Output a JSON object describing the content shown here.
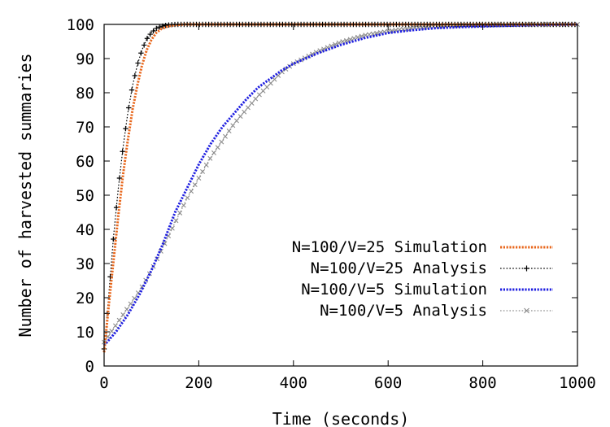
{
  "chart_data": {
    "type": "line",
    "xlabel": "Time (seconds)",
    "ylabel": "Number of harvested summaries",
    "xlim": [
      0,
      1000
    ],
    "ylim": [
      0,
      100
    ],
    "x_ticks": [
      0,
      200,
      400,
      600,
      800,
      1000
    ],
    "y_ticks": [
      0,
      10,
      20,
      30,
      40,
      50,
      60,
      70,
      80,
      90,
      100
    ],
    "grid": false,
    "legend_position": "bottom-right",
    "series": [
      {
        "name": "N=100/V=25 Simulation",
        "color": "#e8671c",
        "style": "dotted",
        "x": [
          0,
          10,
          20,
          30,
          40,
          50,
          60,
          70,
          80,
          90,
          100,
          110,
          120,
          130,
          140,
          150,
          170,
          200,
          300,
          400,
          500,
          600,
          700,
          800,
          900,
          1000
        ],
        "y": [
          4,
          18,
          31,
          44,
          56,
          66,
          75,
          82,
          88,
          92.5,
          95.5,
          97.5,
          98.6,
          99.2,
          99.6,
          99.8,
          100,
          100,
          100,
          100,
          100,
          100,
          100,
          100,
          100,
          100
        ]
      },
      {
        "name": "N=100/V=25 Analysis",
        "color": "#000000",
        "style": "dotted-plus",
        "x": [
          0,
          10,
          20,
          30,
          40,
          50,
          60,
          70,
          80,
          90,
          100,
          110,
          120,
          130,
          140,
          150,
          170,
          200,
          300,
          400,
          500,
          600,
          700,
          800,
          900,
          1000
        ],
        "y": [
          5,
          21,
          38,
          52,
          64,
          74,
          82,
          88,
          92.5,
          95.7,
          97.6,
          98.8,
          99.4,
          99.7,
          99.9,
          100,
          100,
          100,
          100,
          100,
          100,
          100,
          100,
          100,
          100,
          100
        ]
      },
      {
        "name": "N=100/V=5 Simulation",
        "color": "#1f1fe0",
        "style": "dotted",
        "x": [
          0,
          25,
          50,
          75,
          100,
          125,
          150,
          175,
          200,
          225,
          250,
          275,
          300,
          325,
          350,
          375,
          400,
          450,
          500,
          550,
          600,
          650,
          700,
          750,
          800,
          850,
          900,
          950,
          1000
        ],
        "y": [
          6,
          10,
          15,
          21,
          28,
          36,
          45,
          52,
          59,
          65,
          70,
          74,
          78,
          81.5,
          84,
          86.5,
          88.5,
          91.5,
          94,
          96,
          97.5,
          98.3,
          98.9,
          99.2,
          99.4,
          99.6,
          99.8,
          99.9,
          100
        ]
      },
      {
        "name": "N=100/V=5 Analysis",
        "color": "#8c8c8c",
        "style": "dotted-x",
        "x": [
          0,
          25,
          50,
          75,
          100,
          125,
          150,
          175,
          200,
          225,
          250,
          275,
          300,
          325,
          350,
          375,
          400,
          450,
          500,
          550,
          600,
          650,
          700,
          750,
          800,
          850,
          900,
          950,
          1000
        ],
        "y": [
          7,
          12,
          17,
          22,
          28,
          35,
          42,
          49,
          55,
          61,
          66,
          71,
          75,
          79,
          82.5,
          86,
          88.5,
          92,
          94.8,
          96.8,
          98,
          98.9,
          99.4,
          99.7,
          99.85,
          99.9,
          100,
          100,
          100
        ]
      }
    ]
  }
}
